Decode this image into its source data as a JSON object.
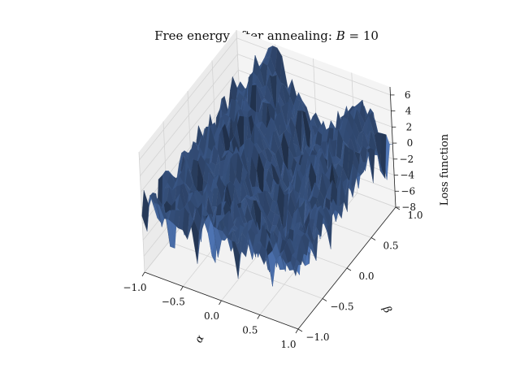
{
  "chart_data": {
    "type": "surface3d",
    "title": "Free energy after annealing: B = 10",
    "title_parts": {
      "prefix": "Free energy after annealing: ",
      "var": "B",
      "suffix": " = 10"
    },
    "xlabel": "α",
    "ylabel": "β",
    "zlabel": "Loss function",
    "xlim": [
      -1.0,
      1.0
    ],
    "ylim": [
      -1.0,
      1.0
    ],
    "zlim": [
      -8,
      7
    ],
    "xticks": [
      "−1.0",
      "−0.5",
      "0.0",
      "0.5",
      "1.0"
    ],
    "yticks": [
      "−1.0",
      "−0.5",
      "0.0",
      "0.5",
      "1.0"
    ],
    "zticks": [
      "−8",
      "−6",
      "−4",
      "−2",
      "0",
      "2",
      "4",
      "6"
    ],
    "surface_color": "#4c72b0",
    "surface_shape": "rugged random landscape with a ridge peaking near 7 at α≈-0.6, β≈1.0 and a deep trough near -8 around α≈0.4, β≈-0.3"
  }
}
